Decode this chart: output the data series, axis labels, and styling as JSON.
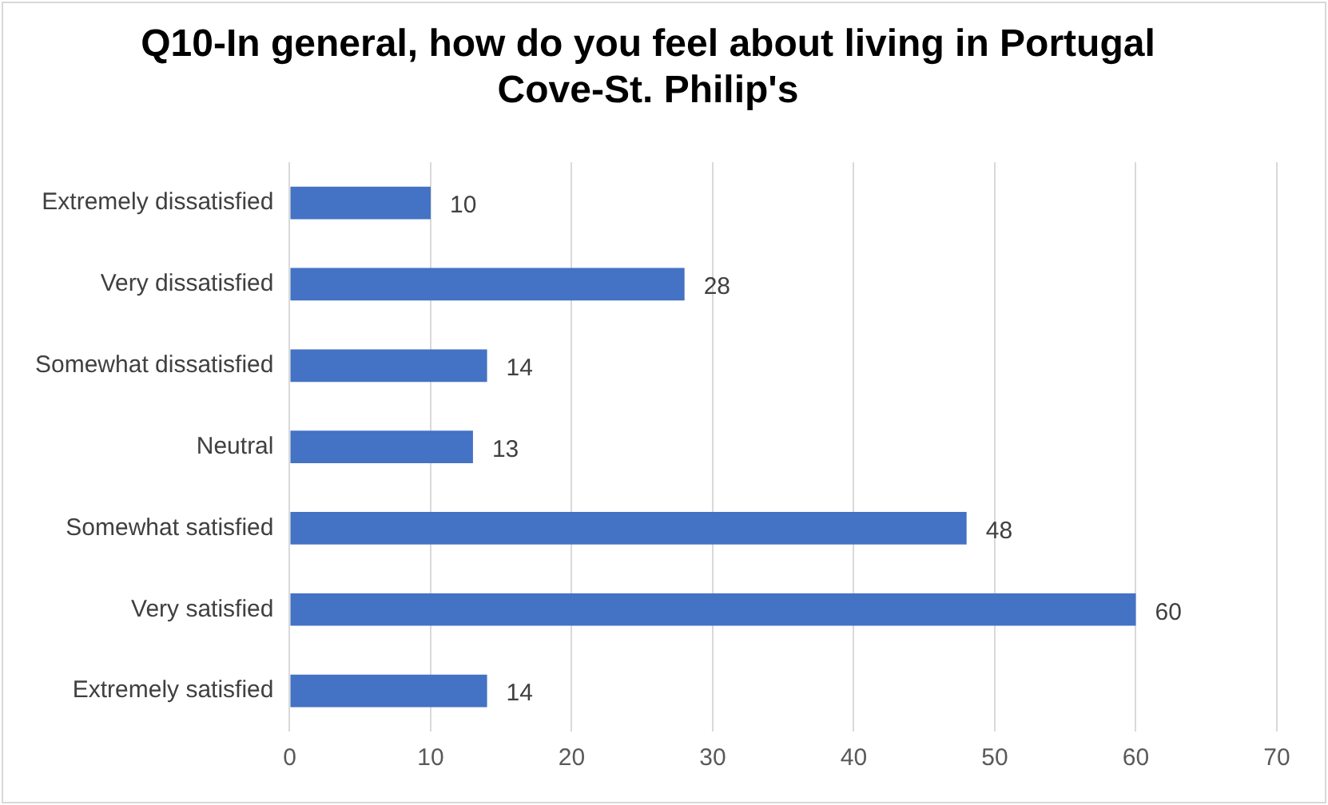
{
  "chart_data": {
    "type": "bar",
    "orientation": "horizontal",
    "title": "Q10-In general, how do you feel about living in Portugal Cove-St. Philip's",
    "categories": [
      "Extremely dissatisfied",
      "Very dissatisfied",
      "Somewhat dissatisfied",
      "Neutral",
      "Somewhat satisfied",
      "Very satisfied",
      "Extremely satisfied"
    ],
    "values": [
      10,
      28,
      14,
      13,
      48,
      60,
      14
    ],
    "color": "#4472c4",
    "xlim": [
      0,
      70
    ],
    "xticks": [
      0,
      10,
      20,
      30,
      40,
      50,
      60,
      70
    ],
    "grid": "x",
    "data_labels": true,
    "legend": false
  }
}
